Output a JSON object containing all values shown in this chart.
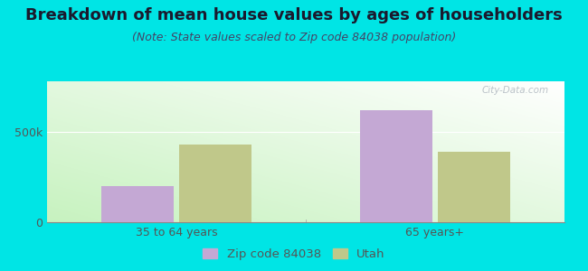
{
  "title": "Breakdown of mean house values by ages of householders",
  "subtitle": "(Note: State values scaled to Zip code 84038 population)",
  "categories": [
    "35 to 64 years",
    "65 years+"
  ],
  "zip_values": [
    200000,
    620000
  ],
  "utah_values": [
    430000,
    390000
  ],
  "zip_color": "#c4a8d4",
  "utah_color": "#c0c88a",
  "background_color": "#00e5e5",
  "ylim": [
    0,
    780000
  ],
  "yticks": [
    0,
    500000
  ],
  "ytick_labels": [
    "0",
    "500k"
  ],
  "legend_labels": [
    "Zip code 84038",
    "Utah"
  ],
  "watermark": "City-Data.com",
  "bar_width": 0.28,
  "title_fontsize": 13,
  "subtitle_fontsize": 9
}
